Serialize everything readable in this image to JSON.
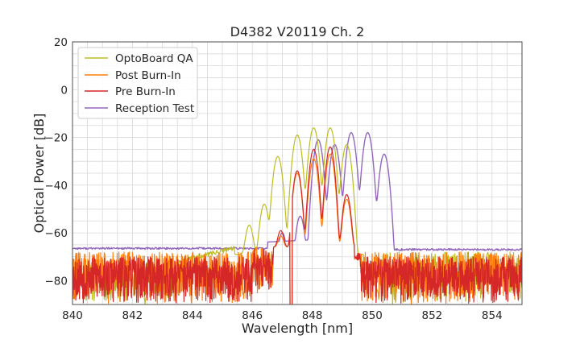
{
  "chart_data": {
    "type": "line",
    "title": "D4382 V20119 Ch. 2",
    "xlabel": "Wavelength [nm]",
    "ylabel": "Optical Power [dB]",
    "xlim": [
      840,
      855
    ],
    "ylim": [
      -90,
      20
    ],
    "xticks": [
      840,
      842,
      844,
      846,
      848,
      850,
      852,
      854
    ],
    "yticks": [
      20,
      0,
      -20,
      -40,
      -60,
      -80
    ],
    "xtick_labels": [
      "840",
      "842",
      "844",
      "846",
      "848",
      "850",
      "852",
      "854"
    ],
    "ytick_labels": [
      "20",
      "0",
      "−20",
      "−40",
      "−60",
      "−80"
    ],
    "grid": true,
    "legend_position": "top-left",
    "colors": {
      "optoboard_qa": "#bcbd22",
      "post_burn_in": "#ff7f0e",
      "pre_burn_in": "#d62728",
      "reception_test": "#9467bd",
      "grid": "#d9d9d9",
      "frame": "#4d4d4d"
    },
    "series": [
      {
        "name": "OptoBoard QA",
        "color": "#bcbd22",
        "noise_floor": {
          "x_range": [
            840,
            846.2
          ],
          "y_range": [
            -90,
            -68
          ]
        },
        "peaks": [
          {
            "x": 845.9,
            "y": -57
          },
          {
            "x": 846.4,
            "y": -48
          },
          {
            "x": 846.85,
            "y": -28
          },
          {
            "x": 847.5,
            "y": -19
          },
          {
            "x": 848.05,
            "y": -16
          },
          {
            "x": 848.6,
            "y": -16
          },
          {
            "x": 849.15,
            "y": -23
          }
        ],
        "shoulder_end": 849.7
      },
      {
        "name": "Post Burn-In",
        "color": "#ff7f0e",
        "noise_floor": {
          "x_range": [
            840,
            855
          ],
          "y_range": [
            -90,
            -68
          ]
        },
        "peaks": [
          {
            "x": 846.95,
            "y": -63
          },
          {
            "x": 847.5,
            "y": -35
          },
          {
            "x": 848.05,
            "y": -29
          },
          {
            "x": 848.6,
            "y": -27
          },
          {
            "x": 849.15,
            "y": -46
          }
        ],
        "gap": [
          849.4,
          849.6
        ]
      },
      {
        "name": "Pre Burn-In",
        "color": "#d62728",
        "noise_floor": {
          "x_range": [
            840,
            855
          ],
          "y_range": [
            -90,
            -70
          ]
        },
        "peaks": [
          {
            "x": 846.95,
            "y": -60
          },
          {
            "x": 847.5,
            "y": -34
          },
          {
            "x": 848.05,
            "y": -25
          },
          {
            "x": 848.6,
            "y": -24
          },
          {
            "x": 849.15,
            "y": -44
          }
        ],
        "gap": [
          849.4,
          849.6
        ]
      },
      {
        "name": "Reception Test",
        "color": "#9467bd",
        "baseline_left": -66.5,
        "baseline_right": -67,
        "peaks": [
          {
            "x": 847.0,
            "y": -60
          },
          {
            "x": 847.6,
            "y": -53
          },
          {
            "x": 848.2,
            "y": -21
          },
          {
            "x": 848.75,
            "y": -23
          },
          {
            "x": 849.3,
            "y": -18
          },
          {
            "x": 849.85,
            "y": -18
          },
          {
            "x": 850.4,
            "y": -27
          }
        ],
        "band": [
          846.5,
          850.55
        ]
      }
    ]
  }
}
